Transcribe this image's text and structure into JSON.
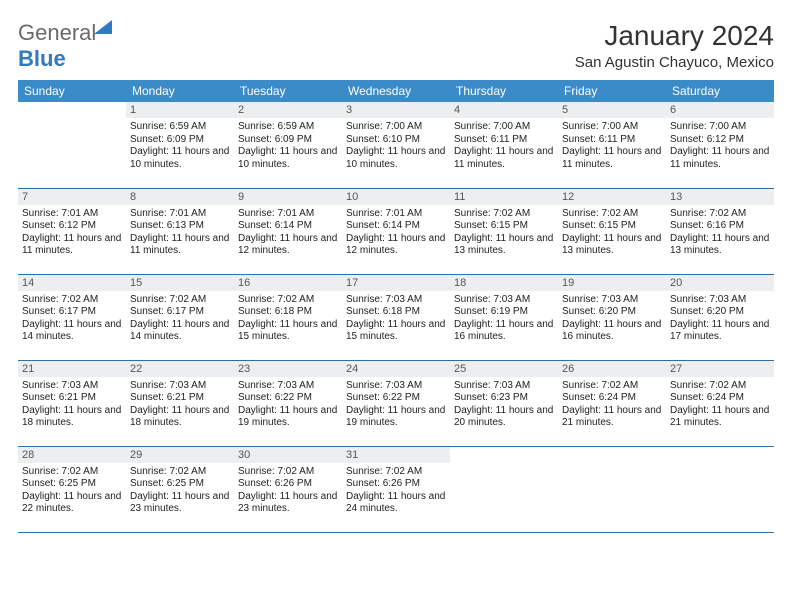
{
  "logo": {
    "part1": "General",
    "part2": "Blue"
  },
  "title": "January 2024",
  "location": "San Agustin Chayuco, Mexico",
  "colors": {
    "header_bg": "#3b8bc8",
    "header_text": "#ffffff",
    "daynum_bg": "#eceef0",
    "row_border": "#2f6fa6",
    "logo_blue": "#2f7ac0",
    "logo_gray": "#6a6a6a"
  },
  "weekdays": [
    "Sunday",
    "Monday",
    "Tuesday",
    "Wednesday",
    "Thursday",
    "Friday",
    "Saturday"
  ],
  "firstWeekday": 1,
  "daysInMonth": 31,
  "days": {
    "1": {
      "sunrise": "6:59 AM",
      "sunset": "6:09 PM",
      "daylight": "11 hours and 10 minutes."
    },
    "2": {
      "sunrise": "6:59 AM",
      "sunset": "6:09 PM",
      "daylight": "11 hours and 10 minutes."
    },
    "3": {
      "sunrise": "7:00 AM",
      "sunset": "6:10 PM",
      "daylight": "11 hours and 10 minutes."
    },
    "4": {
      "sunrise": "7:00 AM",
      "sunset": "6:11 PM",
      "daylight": "11 hours and 11 minutes."
    },
    "5": {
      "sunrise": "7:00 AM",
      "sunset": "6:11 PM",
      "daylight": "11 hours and 11 minutes."
    },
    "6": {
      "sunrise": "7:00 AM",
      "sunset": "6:12 PM",
      "daylight": "11 hours and 11 minutes."
    },
    "7": {
      "sunrise": "7:01 AM",
      "sunset": "6:12 PM",
      "daylight": "11 hours and 11 minutes."
    },
    "8": {
      "sunrise": "7:01 AM",
      "sunset": "6:13 PM",
      "daylight": "11 hours and 11 minutes."
    },
    "9": {
      "sunrise": "7:01 AM",
      "sunset": "6:14 PM",
      "daylight": "11 hours and 12 minutes."
    },
    "10": {
      "sunrise": "7:01 AM",
      "sunset": "6:14 PM",
      "daylight": "11 hours and 12 minutes."
    },
    "11": {
      "sunrise": "7:02 AM",
      "sunset": "6:15 PM",
      "daylight": "11 hours and 13 minutes."
    },
    "12": {
      "sunrise": "7:02 AM",
      "sunset": "6:15 PM",
      "daylight": "11 hours and 13 minutes."
    },
    "13": {
      "sunrise": "7:02 AM",
      "sunset": "6:16 PM",
      "daylight": "11 hours and 13 minutes."
    },
    "14": {
      "sunrise": "7:02 AM",
      "sunset": "6:17 PM",
      "daylight": "11 hours and 14 minutes."
    },
    "15": {
      "sunrise": "7:02 AM",
      "sunset": "6:17 PM",
      "daylight": "11 hours and 14 minutes."
    },
    "16": {
      "sunrise": "7:02 AM",
      "sunset": "6:18 PM",
      "daylight": "11 hours and 15 minutes."
    },
    "17": {
      "sunrise": "7:03 AM",
      "sunset": "6:18 PM",
      "daylight": "11 hours and 15 minutes."
    },
    "18": {
      "sunrise": "7:03 AM",
      "sunset": "6:19 PM",
      "daylight": "11 hours and 16 minutes."
    },
    "19": {
      "sunrise": "7:03 AM",
      "sunset": "6:20 PM",
      "daylight": "11 hours and 16 minutes."
    },
    "20": {
      "sunrise": "7:03 AM",
      "sunset": "6:20 PM",
      "daylight": "11 hours and 17 minutes."
    },
    "21": {
      "sunrise": "7:03 AM",
      "sunset": "6:21 PM",
      "daylight": "11 hours and 18 minutes."
    },
    "22": {
      "sunrise": "7:03 AM",
      "sunset": "6:21 PM",
      "daylight": "11 hours and 18 minutes."
    },
    "23": {
      "sunrise": "7:03 AM",
      "sunset": "6:22 PM",
      "daylight": "11 hours and 19 minutes."
    },
    "24": {
      "sunrise": "7:03 AM",
      "sunset": "6:22 PM",
      "daylight": "11 hours and 19 minutes."
    },
    "25": {
      "sunrise": "7:03 AM",
      "sunset": "6:23 PM",
      "daylight": "11 hours and 20 minutes."
    },
    "26": {
      "sunrise": "7:02 AM",
      "sunset": "6:24 PM",
      "daylight": "11 hours and 21 minutes."
    },
    "27": {
      "sunrise": "7:02 AM",
      "sunset": "6:24 PM",
      "daylight": "11 hours and 21 minutes."
    },
    "28": {
      "sunrise": "7:02 AM",
      "sunset": "6:25 PM",
      "daylight": "11 hours and 22 minutes."
    },
    "29": {
      "sunrise": "7:02 AM",
      "sunset": "6:25 PM",
      "daylight": "11 hours and 23 minutes."
    },
    "30": {
      "sunrise": "7:02 AM",
      "sunset": "6:26 PM",
      "daylight": "11 hours and 23 minutes."
    },
    "31": {
      "sunrise": "7:02 AM",
      "sunset": "6:26 PM",
      "daylight": "11 hours and 24 minutes."
    }
  },
  "labels": {
    "sunrise": "Sunrise:",
    "sunset": "Sunset:",
    "daylight": "Daylight:"
  }
}
